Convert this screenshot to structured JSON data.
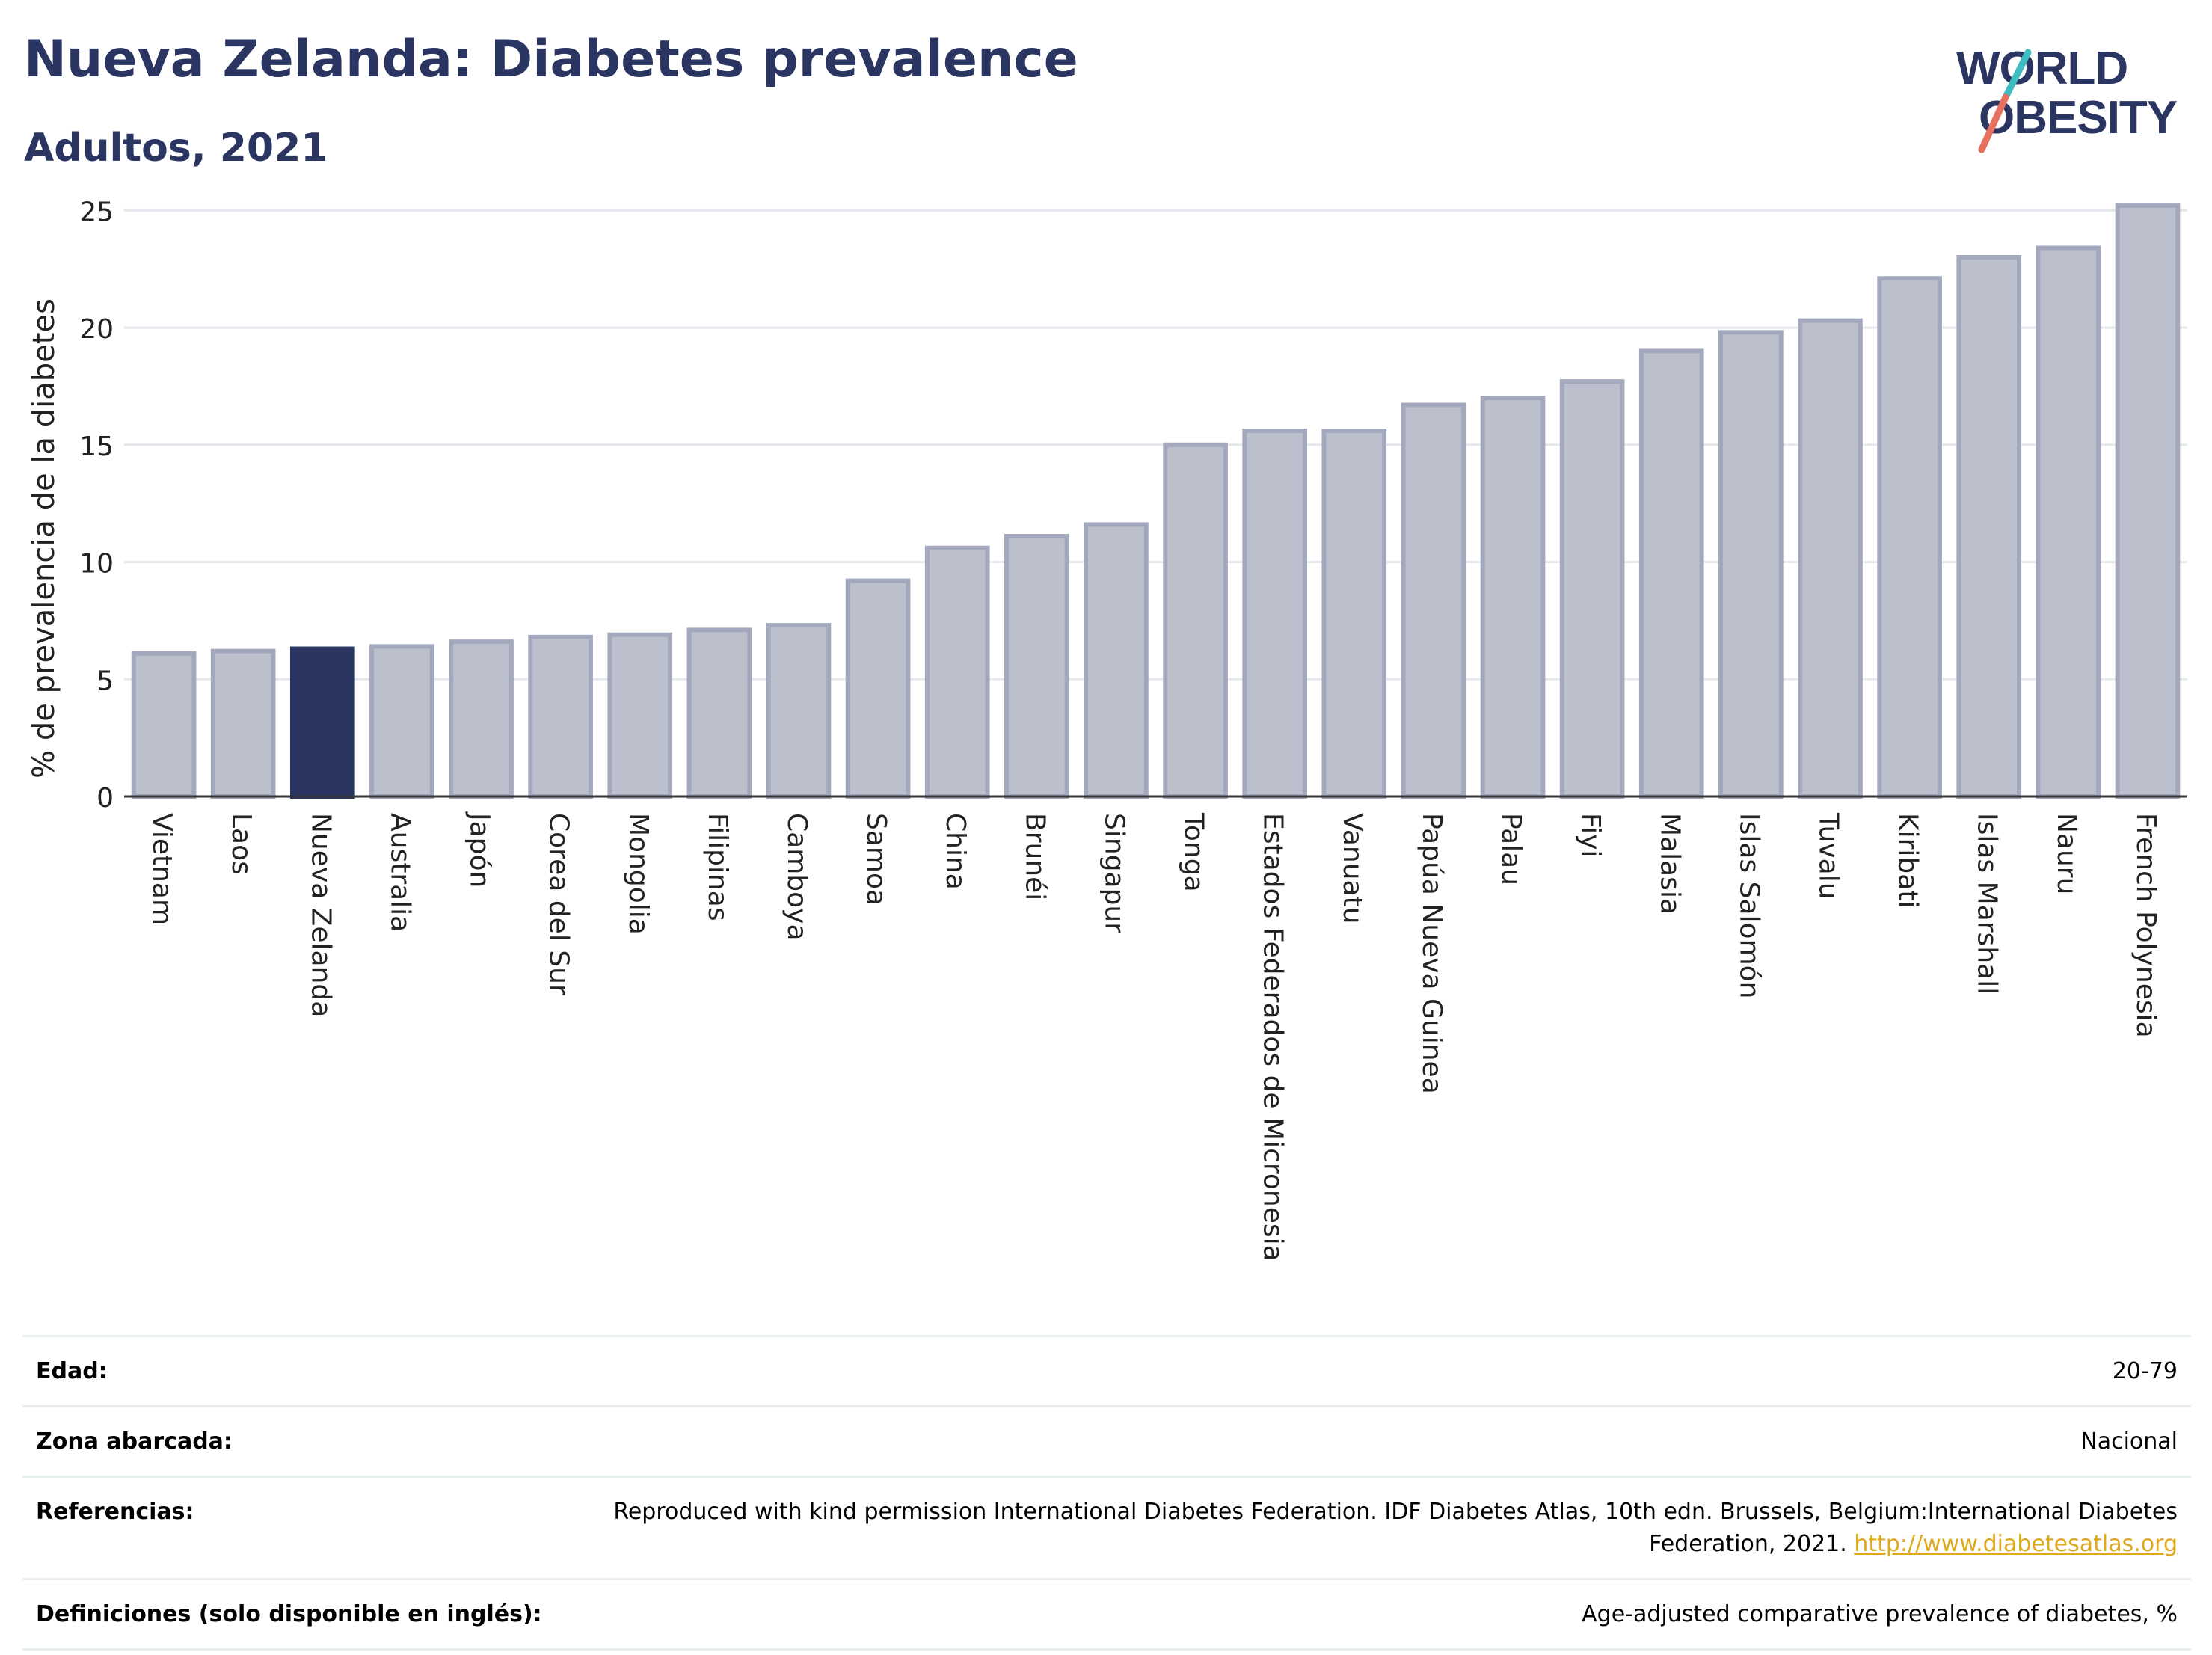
{
  "header": {
    "title": "Nueva Zelanda: Diabetes prevalence",
    "subtitle": "Adultos, 2021"
  },
  "logo": {
    "line1": "WORLD",
    "line2": "OBESITY",
    "colors": {
      "text": "#2a3561",
      "slash_teal": "#3dbcc2",
      "slash_coral": "#e8705f"
    }
  },
  "chart_data": {
    "type": "bar",
    "title": "",
    "xlabel": "",
    "ylabel": "% de prevalencia de la diabetes",
    "ylim": [
      0,
      26
    ],
    "yticks": [
      0,
      5,
      10,
      15,
      20,
      25
    ],
    "grid": true,
    "highlight": "Nueva Zelanda",
    "colors": {
      "bar": "#bcc0cd",
      "bar_border": "#a3a8bd",
      "highlight": "#2a3561",
      "grid": "#e6e8ee"
    },
    "categories": [
      "Vietnam",
      "Laos",
      "Nueva Zelanda",
      "Australia",
      "Japón",
      "Corea del Sur",
      "Mongolia",
      "Filipinas",
      "Camboya",
      "Samoa",
      "China",
      "Brunéi",
      "Singapur",
      "Tonga",
      "Estados Federados de Micronesia",
      "Vanuatu",
      "Papúa Nueva Guinea",
      "Palau",
      "Fiyi",
      "Malasia",
      "Islas Salomón",
      "Tuvalu",
      "Kiribati",
      "Islas Marshall",
      "Nauru",
      "French Polynesia"
    ],
    "values": [
      6.1,
      6.2,
      6.3,
      6.4,
      6.6,
      6.8,
      6.9,
      7.1,
      7.3,
      9.2,
      10.6,
      11.1,
      11.6,
      15.0,
      15.6,
      15.6,
      16.7,
      17.0,
      17.7,
      19.0,
      19.8,
      20.3,
      22.1,
      23.0,
      23.4,
      25.2
    ]
  },
  "info": [
    {
      "label": "Edad:",
      "value": "20-79"
    },
    {
      "label": "Zona abarcada:",
      "value": "Nacional"
    },
    {
      "label": "Referencias:",
      "value": "Reproduced with kind permission International Diabetes Federation.  IDF Diabetes Atlas, 10th edn. Brussels, Belgium:International Diabetes Federation, 2021.",
      "link": "http://www.diabetesatlas.org"
    },
    {
      "label": "Definiciones (solo disponible en inglés):",
      "value": "Age-adjusted comparative prevalence of diabetes, %"
    }
  ]
}
